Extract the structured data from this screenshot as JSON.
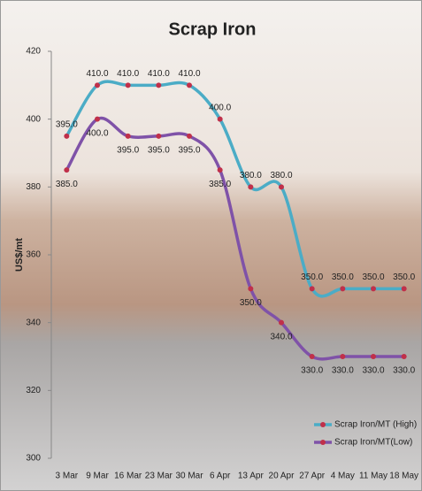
{
  "chart_data": {
    "type": "line",
    "title": "Scrap Iron",
    "y_label": "US$/mt",
    "categories": [
      "3 Mar",
      "9 Mar",
      "16 Mar",
      "23 Mar",
      "30 Mar",
      "6 Apr",
      "13 Apr",
      "20 Apr",
      "27 Apr",
      "4 May",
      "11 May",
      "18 May"
    ],
    "series": [
      {
        "name": "Scrap Iron/MT (High)",
        "color": "#4bacc6",
        "marker_color": "#c0304a",
        "values": [
          395,
          410,
          410,
          410,
          410,
          400,
          380,
          380,
          350,
          350,
          350,
          350
        ],
        "value_labels": [
          "395.0",
          "410.0",
          "410.0",
          "410.0",
          "410.0",
          "400.0",
          "380.0",
          "380.0",
          "350.0",
          "350.0",
          "350.0",
          "350.0"
        ]
      },
      {
        "name": "Scrap Iron/MT(Low)",
        "color": "#7f52a8",
        "marker_color": "#c0304a",
        "values": [
          385,
          400,
          395,
          395,
          395,
          385,
          350,
          340,
          330,
          330,
          330,
          330
        ],
        "value_labels": [
          "385.0",
          "400.0",
          "395.0",
          "395.0",
          "395.0",
          "385.0",
          "350.0",
          "340.0",
          "330.0",
          "330.0",
          "330.0",
          "330.0"
        ]
      }
    ],
    "ylim": [
      300,
      420
    ],
    "yticks": [
      300,
      320,
      340,
      360,
      380,
      400,
      420
    ],
    "smooth": true,
    "legend": "lower right"
  }
}
